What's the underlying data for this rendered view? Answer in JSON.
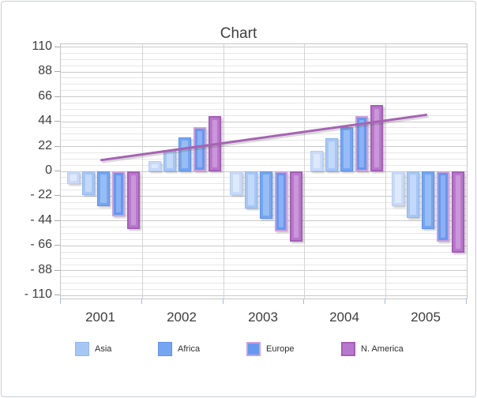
{
  "chart_data": {
    "type": "bar",
    "title": "Chart",
    "categories": [
      "2001",
      "2002",
      "2003",
      "2004",
      "2005"
    ],
    "series": [
      {
        "name": "",
        "values": [
          -11,
          9,
          -21,
          18,
          -31
        ],
        "fill": "#c9daf8",
        "inner": "#ddeafc",
        "border": "#b6cef5",
        "border_width": 1
      },
      {
        "name": "Asia",
        "values": [
          -21,
          19,
          -33,
          29,
          -41
        ],
        "fill": "#a6c6f4",
        "inner": "#c3d9f9",
        "border": "#93b8f0",
        "border_width": 1
      },
      {
        "name": "Africa",
        "values": [
          -31,
          30,
          -42,
          39,
          -51
        ],
        "fill": "#74a5f1",
        "inner": "#97bdf5",
        "border": "#5f93ea",
        "border_width": 1
      },
      {
        "name": "Europe",
        "values": [
          -40,
          39,
          -53,
          49,
          -62
        ],
        "fill": "#6598f0",
        "inner": "#8ab1f4",
        "border": "#cda0dc",
        "border_width": 2
      },
      {
        "name": "N. America",
        "values": [
          -51,
          49,
          -62,
          59,
          -72
        ],
        "fill": "#b778cc",
        "inner": "#cb96da",
        "border": "#a55eb6",
        "border_width": 2
      }
    ],
    "trendline": {
      "color": "#a763b3",
      "start": {
        "category": "2001",
        "value": 10
      },
      "end": {
        "category": "2005",
        "value": 50
      }
    },
    "y_axis": {
      "min": -112.5,
      "max": 112.5,
      "major_step": 22,
      "minor_step": 5.5,
      "tick_values": [
        110,
        88,
        66,
        44,
        22,
        0,
        -22,
        -44,
        -66,
        -88,
        -110
      ],
      "tick_labels": [
        "110",
        "88",
        "66",
        "44",
        "22",
        "0",
        "- 22",
        "- 44",
        "- 66",
        "- 88",
        "- 110"
      ]
    },
    "legend": {
      "position": "bottom",
      "entries": [
        "Asia",
        "Africa",
        "Europe",
        "N. America"
      ]
    },
    "grid": {
      "major_color": "#c9c9c9",
      "minor_color": "#e7e7e7",
      "vertical_color": "#d4d4d4"
    },
    "colors": {
      "window_border": "#c9cdd0",
      "background": "#ffffff",
      "text": "#3e3e3e",
      "y_tick_mark": "#a9a9a9",
      "x_tick_mark": "#a7bedf"
    }
  }
}
